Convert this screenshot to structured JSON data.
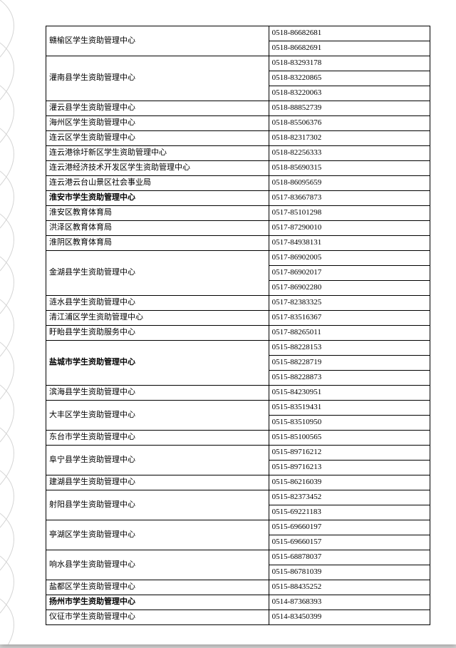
{
  "colors": {
    "page_bg": "#ffffff",
    "outer_bg": "#d8d8d8",
    "border": "#000000",
    "text": "#000000"
  },
  "layout": {
    "col1_width_pct": 58,
    "col2_width_pct": 42,
    "font_size_pt": 11,
    "font_family": "SimSun"
  },
  "rows": [
    {
      "name": "赣榆区学生资助管理中心",
      "phones": [
        "0518-86682681",
        "0518-86682691"
      ],
      "bold": false
    },
    {
      "name": "灌南县学生资助管理中心",
      "phones": [
        "0518-83293178",
        "0518-83220865",
        "0518-83220063"
      ],
      "bold": false
    },
    {
      "name": "灌云县学生资助管理中心",
      "phones": [
        "0518-88852739"
      ],
      "bold": false
    },
    {
      "name": "海州区学生资助管理中心",
      "phones": [
        "0518-85506376"
      ],
      "bold": false
    },
    {
      "name": "连云区学生资助管理中心",
      "phones": [
        "0518-82317302"
      ],
      "bold": false
    },
    {
      "name": "连云港徐圩新区学生资助管理中心",
      "phones": [
        "0518-82256333"
      ],
      "bold": false
    },
    {
      "name": "连云港经济技术开发区学生资助管理中心",
      "phones": [
        "0518-85690315"
      ],
      "bold": false
    },
    {
      "name": "连云港云台山景区社会事业局",
      "phones": [
        "0518-86095659"
      ],
      "bold": false
    },
    {
      "name": "淮安市学生资助管理中心",
      "phones": [
        "0517-83667873"
      ],
      "bold": true
    },
    {
      "name": "淮安区教育体育局",
      "phones": [
        "0517-85101298"
      ],
      "bold": false
    },
    {
      "name": "洪泽区教育体育局",
      "phones": [
        "0517-87290010"
      ],
      "bold": false
    },
    {
      "name": "淮阴区教育体育局",
      "phones": [
        "0517-84938131"
      ],
      "bold": false
    },
    {
      "name": "金湖县学生资助管理中心",
      "phones": [
        "0517-86902005",
        "0517-86902017",
        "0517-86902280"
      ],
      "bold": false
    },
    {
      "name": "涟水县学生资助管理中心",
      "phones": [
        "0517-82383325"
      ],
      "bold": false
    },
    {
      "name": "清江浦区学生资助管理中心",
      "phones": [
        "0517-83516367"
      ],
      "bold": false
    },
    {
      "name": "盱眙县学生资助服务中心",
      "phones": [
        "0517-88265011"
      ],
      "bold": false
    },
    {
      "name": "盐城市学生资助管理中心",
      "phones": [
        "0515-88228153",
        "0515-88228719",
        "0515-88228873"
      ],
      "bold": true
    },
    {
      "name": "滨海县学生资助管理中心",
      "phones": [
        "0515-84230951"
      ],
      "bold": false
    },
    {
      "name": "大丰区学生资助管理中心",
      "phones": [
        "0515-83519431",
        "0515-83510950"
      ],
      "bold": false
    },
    {
      "name": "东台市学生资助管理中心",
      "phones": [
        "0515-85100565"
      ],
      "bold": false
    },
    {
      "name": "阜宁县学生资助管理中心",
      "phones": [
        "0515-89716212",
        "0515-89716213"
      ],
      "bold": false
    },
    {
      "name": "建湖县学生资助管理中心",
      "phones": [
        "0515-86216039"
      ],
      "bold": false
    },
    {
      "name": "射阳县学生资助管理中心",
      "phones": [
        "0515-82373452",
        "0515-69221183"
      ],
      "bold": false
    },
    {
      "name": "亭湖区学生资助管理中心",
      "phones": [
        "0515-69660197",
        "0515-69660157"
      ],
      "bold": false
    },
    {
      "name": "响水县学生资助管理中心",
      "phones": [
        "0515-68878037",
        "0515-86781039"
      ],
      "bold": false
    },
    {
      "name": "盐都区学生资助管理中心",
      "phones": [
        "0515-88435252"
      ],
      "bold": false
    },
    {
      "name": "扬州市学生资助管理中心",
      "phones": [
        "0514-87368393"
      ],
      "bold": true
    },
    {
      "name": "仪征市学生资助管理中心",
      "phones": [
        "0514-83450399"
      ],
      "bold": false
    }
  ]
}
